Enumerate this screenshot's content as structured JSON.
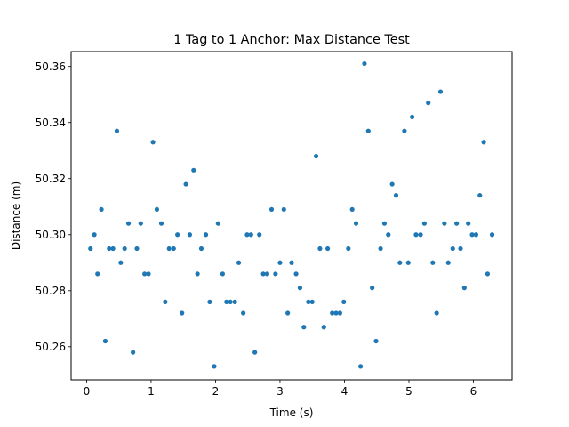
{
  "chart_data": {
    "type": "scatter",
    "title": "1 Tag to 1 Anchor: Max Distance Test",
    "xlabel": "Time (s)",
    "ylabel": "Distance (m)",
    "xlim": [
      -0.24,
      6.6
    ],
    "ylim": [
      50.2482,
      50.3653
    ],
    "xticks": [
      0,
      1,
      2,
      3,
      4,
      5,
      6
    ],
    "yticks": [
      50.26,
      50.28,
      50.3,
      50.32,
      50.34,
      50.36
    ],
    "ytick_labels": [
      "50.26",
      "50.28",
      "50.30",
      "50.32",
      "50.34",
      "50.36"
    ],
    "grid": false,
    "marker_color": "#1f77b4",
    "series": [
      {
        "x": [
          0.06,
          0.12,
          0.17,
          0.23,
          0.29,
          0.35,
          0.41,
          0.47,
          0.53,
          0.59,
          0.65,
          0.72,
          0.78,
          0.84,
          0.9,
          0.96,
          1.03,
          1.09,
          1.16,
          1.22,
          1.28,
          1.35,
          1.41,
          1.48,
          1.54,
          1.6,
          1.66,
          1.72,
          1.78,
          1.85,
          1.91,
          1.98,
          2.04,
          2.11,
          2.17,
          2.23,
          2.3,
          2.36,
          2.43,
          2.49,
          2.55,
          2.61,
          2.68,
          2.74,
          2.8,
          2.87,
          2.93,
          3.0,
          3.06,
          3.12,
          3.18,
          3.25,
          3.31,
          3.37,
          3.44,
          3.5,
          3.56,
          3.62,
          3.68,
          3.74,
          3.81,
          3.87,
          3.93,
          3.99,
          4.06,
          4.12,
          4.18,
          4.25,
          4.31,
          4.37,
          4.43,
          4.49,
          4.56,
          4.62,
          4.68,
          4.74,
          4.8,
          4.86,
          4.93,
          4.99,
          5.05,
          5.11,
          5.18,
          5.24,
          5.3,
          5.37,
          5.43,
          5.49,
          5.55,
          5.61,
          5.68,
          5.74,
          5.8,
          5.86,
          5.92,
          5.98,
          6.04,
          6.1,
          6.16,
          6.22,
          6.29
        ],
        "y": [
          50.295,
          50.3,
          50.286,
          50.309,
          50.262,
          50.295,
          50.295,
          50.337,
          50.29,
          50.295,
          50.304,
          50.258,
          50.295,
          50.304,
          50.286,
          50.286,
          50.333,
          50.309,
          50.304,
          50.276,
          50.295,
          50.295,
          50.3,
          50.272,
          50.318,
          50.3,
          50.323,
          50.286,
          50.295,
          50.3,
          50.276,
          50.253,
          50.304,
          50.286,
          50.276,
          50.276,
          50.276,
          50.29,
          50.272,
          50.3,
          50.3,
          50.258,
          50.3,
          50.286,
          50.286,
          50.309,
          50.286,
          50.29,
          50.309,
          50.272,
          50.29,
          50.286,
          50.281,
          50.267,
          50.276,
          50.276,
          50.328,
          50.295,
          50.267,
          50.295,
          50.272,
          50.272,
          50.272,
          50.276,
          50.295,
          50.309,
          50.304,
          50.253,
          50.361,
          50.337,
          50.281,
          50.262,
          50.295,
          50.304,
          50.3,
          50.318,
          50.314,
          50.29,
          50.337,
          50.29,
          50.342,
          50.3,
          50.3,
          50.304,
          50.347,
          50.29,
          50.272,
          50.351,
          50.304,
          50.29,
          50.295,
          50.304,
          50.295,
          50.281,
          50.304,
          50.3,
          50.3,
          50.314,
          50.333,
          50.286,
          50.3
        ]
      }
    ]
  }
}
